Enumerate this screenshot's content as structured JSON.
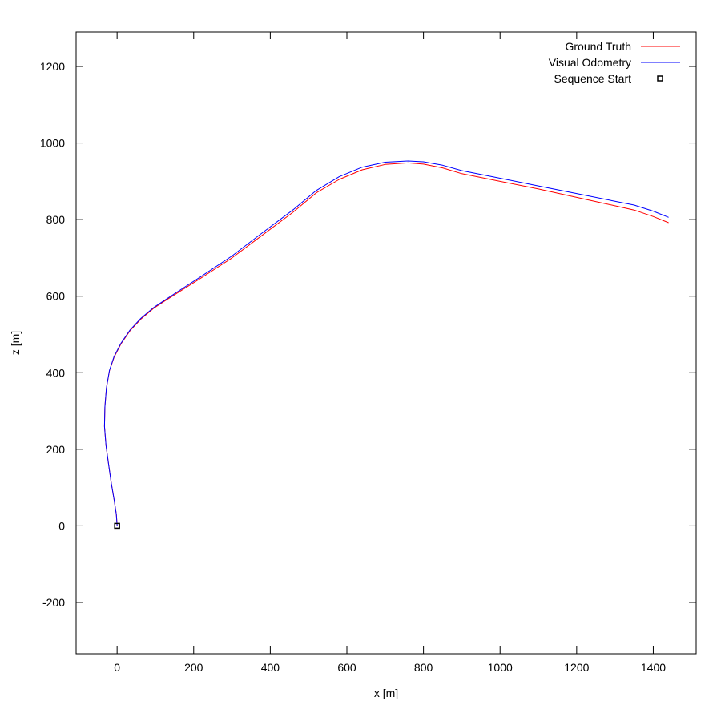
{
  "chart_data": {
    "type": "line",
    "title": "",
    "xlabel": "x [m]",
    "ylabel": "z [m]",
    "xlim": [
      -107,
      1512
    ],
    "ylim": [
      -334,
      1290
    ],
    "xticks": [
      0,
      200,
      400,
      600,
      800,
      1000,
      1200,
      1400
    ],
    "yticks": [
      -200,
      0,
      200,
      400,
      600,
      800,
      1000,
      1200
    ],
    "grid": false,
    "legend_position": "top-right",
    "series": [
      {
        "name": "Ground Truth",
        "color": "#ff0000",
        "x": [
          0,
          -2,
          -8,
          -15,
          -22,
          -29,
          -33,
          -32,
          -28,
          -20,
          -8,
          10,
          34,
          62,
          95,
          122,
          160,
          220,
          300,
          380,
          460,
          520,
          580,
          640,
          700,
          760,
          800,
          850,
          900,
          1000,
          1100,
          1200,
          1300,
          1350,
          1400,
          1440
        ],
        "y": [
          0,
          30,
          70,
          110,
          160,
          210,
          260,
          310,
          360,
          405,
          440,
          475,
          510,
          540,
          568,
          586,
          610,
          648,
          700,
          760,
          820,
          870,
          905,
          930,
          944,
          948,
          945,
          935,
          920,
          900,
          880,
          858,
          836,
          825,
          808,
          792
        ]
      },
      {
        "name": "Visual Odometry",
        "color": "#0000ff",
        "x": [
          0,
          -2,
          -8,
          -15,
          -22,
          -29,
          -33,
          -32,
          -28,
          -20,
          -8,
          10,
          34,
          62,
          95,
          122,
          160,
          220,
          300,
          380,
          460,
          520,
          580,
          640,
          700,
          760,
          800,
          850,
          900,
          1000,
          1100,
          1200,
          1300,
          1350,
          1400,
          1440
        ],
        "y": [
          0,
          30,
          70,
          110,
          160,
          210,
          260,
          310,
          360,
          406,
          442,
          477,
          512,
          542,
          570,
          588,
          613,
          652,
          705,
          766,
          826,
          876,
          912,
          937,
          950,
          953,
          951,
          942,
          928,
          908,
          888,
          868,
          848,
          838,
          822,
          806
        ]
      },
      {
        "name": "Sequence Start",
        "color": "#000000",
        "marker": "square",
        "x": [
          0
        ],
        "y": [
          0
        ]
      }
    ]
  }
}
